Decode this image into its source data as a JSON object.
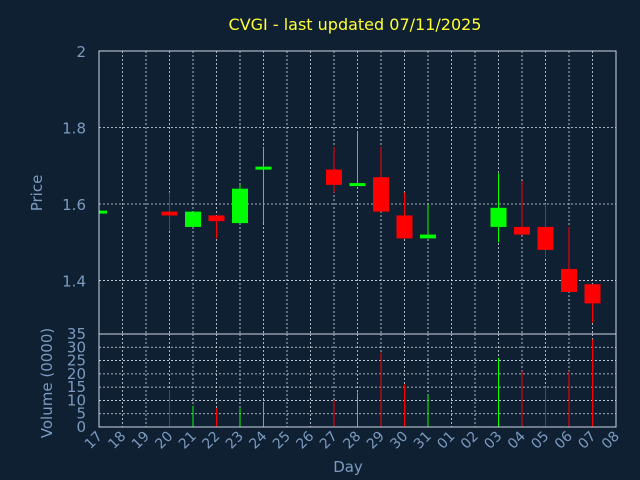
{
  "chart_data": {
    "type": "candlestick",
    "title": "CVGI - last updated 07/11/2025",
    "xlabel": "Day",
    "x_ticks": [
      "17",
      "18",
      "19",
      "20",
      "21",
      "22",
      "23",
      "24",
      "25",
      "26",
      "27",
      "28",
      "29",
      "30",
      "31",
      "01",
      "02",
      "03",
      "04",
      "05",
      "06",
      "07",
      "08"
    ],
    "price_panel": {
      "ylabel": "Price",
      "ylim": [
        1.26,
        2.0
      ],
      "y_ticks": [
        1.4,
        1.6,
        1.8,
        2.0
      ],
      "y_tick_labels": [
        "1.4",
        "1.6",
        "1.8",
        "2"
      ],
      "grid": true
    },
    "volume_panel": {
      "ylabel": "Volume (0000)",
      "ylim": [
        0,
        35
      ],
      "y_ticks": [
        0,
        5,
        10,
        15,
        20,
        25,
        30,
        35
      ],
      "y_tick_labels": [
        "0",
        "5",
        "10",
        "15",
        "20",
        "25",
        "30",
        "35"
      ],
      "grid": true
    },
    "up_color": "#00ff00",
    "down_color": "#ff0000",
    "candles": [
      {
        "day": "17",
        "open": 1.58,
        "high": 1.58,
        "low": 1.58,
        "close": 1.58,
        "volume": 0
      },
      {
        "day": "20",
        "open": 1.58,
        "high": 1.63,
        "low": 1.53,
        "close": 1.57,
        "volume": 14
      },
      {
        "day": "21",
        "open": 1.54,
        "high": 1.58,
        "low": 1.54,
        "close": 1.58,
        "volume": 8
      },
      {
        "day": "22",
        "open": 1.57,
        "high": 1.57,
        "low": 1.51,
        "close": 1.555,
        "volume": 7
      },
      {
        "day": "23",
        "open": 1.55,
        "high": 1.65,
        "low": 1.55,
        "close": 1.64,
        "volume": 7
      },
      {
        "day": "24",
        "open": 1.69,
        "high": 1.75,
        "low": 1.55,
        "close": 1.695,
        "volume": 9
      },
      {
        "day": "27",
        "open": 1.69,
        "high": 1.75,
        "low": 1.63,
        "close": 1.65,
        "volume": 10
      },
      {
        "day": "28",
        "open": 1.65,
        "high": 1.79,
        "low": 1.65,
        "close": 1.652,
        "volume": 13
      },
      {
        "day": "29",
        "open": 1.67,
        "high": 1.75,
        "low": 1.58,
        "close": 1.58,
        "volume": 28
      },
      {
        "day": "30",
        "open": 1.57,
        "high": 1.63,
        "low": 1.51,
        "close": 1.51,
        "volume": 16
      },
      {
        "day": "31",
        "open": 1.51,
        "high": 1.6,
        "low": 1.51,
        "close": 1.52,
        "volume": 12
      },
      {
        "day": "03",
        "open": 1.54,
        "high": 1.68,
        "low": 1.5,
        "close": 1.59,
        "volume": 26
      },
      {
        "day": "04",
        "open": 1.54,
        "high": 1.66,
        "low": 1.52,
        "close": 1.52,
        "volume": 21
      },
      {
        "day": "05",
        "open": 1.54,
        "high": 1.6,
        "low": 1.46,
        "close": 1.48,
        "volume": 15
      },
      {
        "day": "06",
        "open": 1.43,
        "high": 1.54,
        "low": 1.37,
        "close": 1.37,
        "volume": 21
      },
      {
        "day": "07",
        "open": 1.39,
        "high": 1.39,
        "low": 1.29,
        "close": 1.34,
        "volume": 33
      }
    ]
  }
}
